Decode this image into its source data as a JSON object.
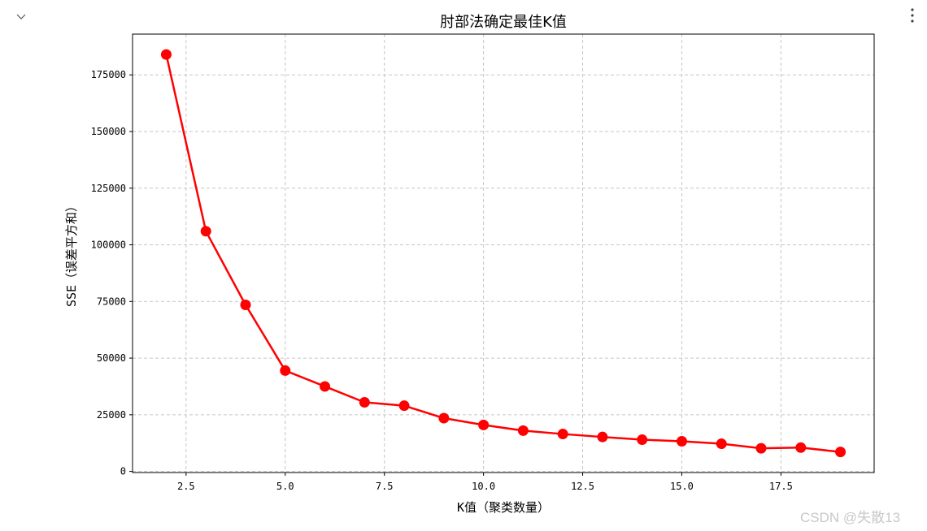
{
  "toolbar": {
    "collapse_icon": "chevron-down-icon",
    "more_icon": "vertical-ellipsis-icon"
  },
  "watermark": "CSDN @失散13",
  "chart_data": {
    "type": "line",
    "title": "肘部法确定最佳K值",
    "xlabel": "K值（聚类数量）",
    "ylabel": "SSE（误差平方和）",
    "xlim": [
      1.15,
      19.85
    ],
    "ylim": [
      -500,
      193000
    ],
    "x_ticks": [
      2.5,
      5.0,
      7.5,
      10.0,
      12.5,
      15.0,
      17.5
    ],
    "x_tick_labels": [
      "2.5",
      "5.0",
      "7.5",
      "10.0",
      "12.5",
      "15.0",
      "17.5"
    ],
    "y_ticks": [
      0,
      25000,
      50000,
      75000,
      100000,
      125000,
      150000,
      175000
    ],
    "y_tick_labels": [
      "0",
      "25000",
      "50000",
      "75000",
      "100000",
      "125000",
      "150000",
      "175000"
    ],
    "grid": true,
    "color": "#ff0000",
    "marker": "circle",
    "x": [
      2,
      3,
      4,
      5,
      6,
      7,
      8,
      9,
      10,
      11,
      12,
      13,
      14,
      15,
      16,
      17,
      18,
      19
    ],
    "series": [
      {
        "values": [
          184000,
          106000,
          73500,
          44500,
          37500,
          30500,
          29000,
          23500,
          20500,
          18000,
          16500,
          15200,
          14000,
          13300,
          12200,
          10200,
          10500,
          8600
        ]
      }
    ]
  }
}
